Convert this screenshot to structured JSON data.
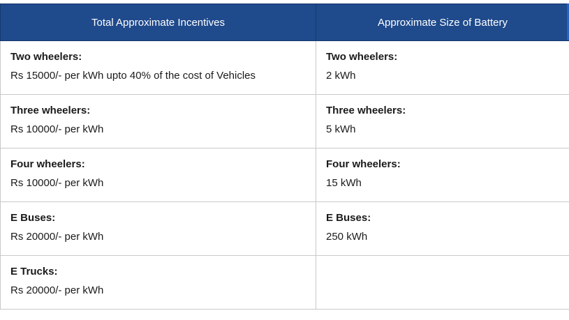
{
  "table": {
    "headers": [
      "Total Approximate Incentives",
      "Approximate Size of Battery"
    ],
    "rows": [
      {
        "incentive": {
          "title": "Two wheelers:",
          "value": "Rs 15000/- per kWh upto 40% of the cost of Vehicles"
        },
        "battery": {
          "title": "Two wheelers:",
          "value": "2 kWh"
        }
      },
      {
        "incentive": {
          "title": "Three wheelers:",
          "value": "Rs 10000/- per kWh"
        },
        "battery": {
          "title": "Three wheelers:",
          "value": "5 kWh"
        }
      },
      {
        "incentive": {
          "title": "Four wheelers:",
          "value": "Rs 10000/- per kWh"
        },
        "battery": {
          "title": "Four wheelers:",
          "value": "15 kWh"
        }
      },
      {
        "incentive": {
          "title": "E Buses:",
          "value": "Rs 20000/- per kWh"
        },
        "battery": {
          "title": "E Buses:",
          "value": "250 kWh"
        }
      },
      {
        "incentive": {
          "title": "E Trucks:",
          "value": "Rs 20000/- per kWh"
        },
        "battery": {
          "title": "",
          "value": ""
        }
      }
    ]
  },
  "colors": {
    "header_bg": "#1f4a8c",
    "header_text": "#ffffff",
    "border": "#c9c9c9"
  }
}
